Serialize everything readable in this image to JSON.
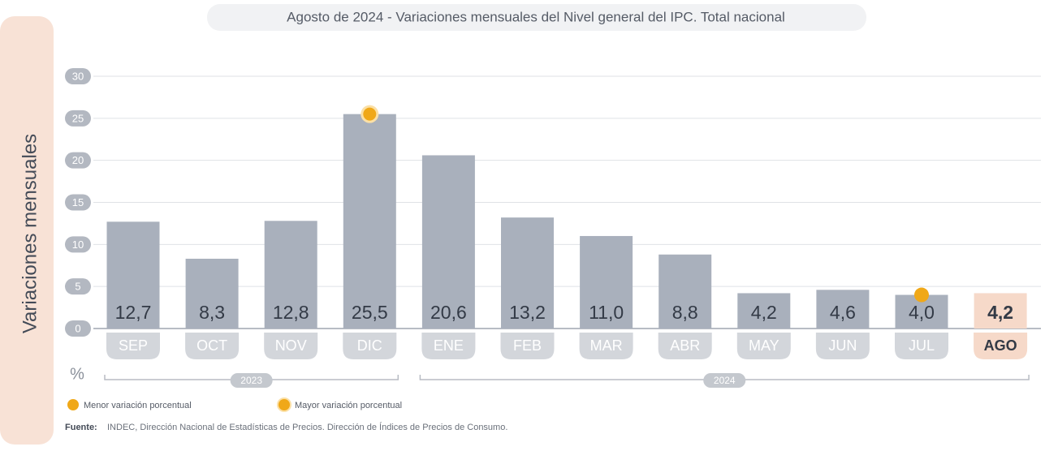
{
  "chart_data": {
    "type": "bar",
    "title": "Agosto de 2024 - Variaciones mensuales del Nivel general del IPC. Total nacional",
    "ylabel": "Variaciones mensuales",
    "unit": "%",
    "categories": [
      "SEP",
      "OCT",
      "NOV",
      "DIC",
      "ENE",
      "FEB",
      "MAR",
      "ABR",
      "MAY",
      "JUN",
      "JUL",
      "AGO"
    ],
    "values": [
      12.7,
      8.3,
      12.8,
      25.5,
      20.6,
      13.2,
      11.0,
      8.8,
      4.2,
      4.6,
      4.0,
      4.2
    ],
    "value_labels": [
      "12,7",
      "8,3",
      "12,8",
      "25,5",
      "20,6",
      "13,2",
      "11,0",
      "8,8",
      "4,2",
      "4,6",
      "4,0",
      "4,2"
    ],
    "color": "#a9b0bc",
    "highlight_index": 11,
    "highlight_color": "#f6d9c9",
    "ylim": [
      0,
      30
    ],
    "yticks": [
      0,
      5,
      10,
      15,
      20,
      25,
      30
    ],
    "grid": true,
    "groups": [
      {
        "label": "2023",
        "start": 0,
        "end": 3
      },
      {
        "label": "2024",
        "start": 4,
        "end": 11
      }
    ],
    "markers": [
      {
        "name": "Menor variación porcentual",
        "color": "#f0a818",
        "index": 10
      },
      {
        "name": "Mayor variación porcentual",
        "color": "#f0a818",
        "index": 3
      }
    ],
    "source_label": "Fuente:",
    "source": "INDEC, Dirección Nacional de Estadísticas de Precios. Dirección de Índices de Precios de Consumo."
  }
}
